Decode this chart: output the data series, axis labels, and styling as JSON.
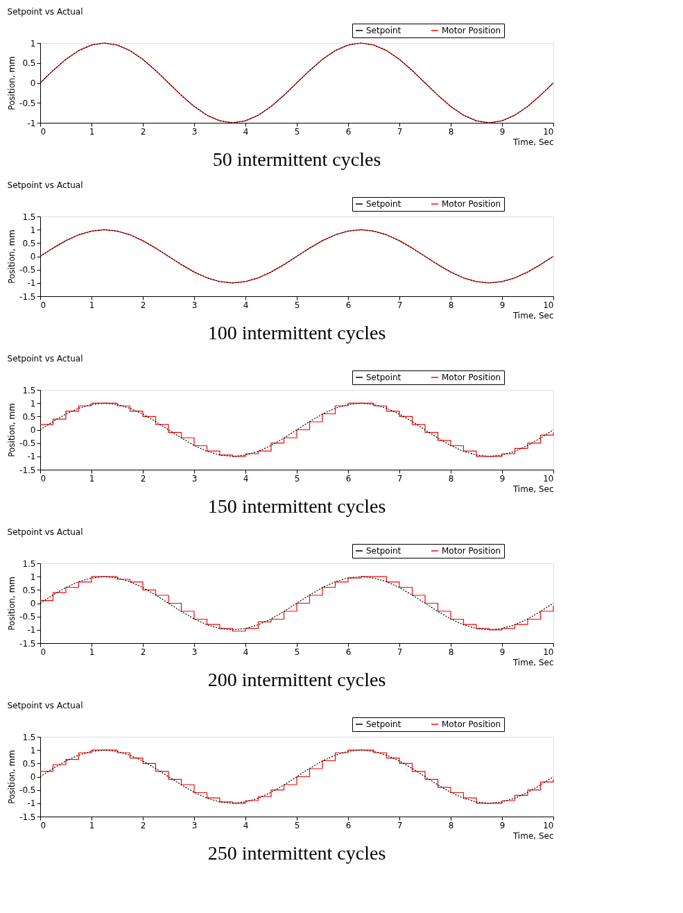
{
  "chart_data": [
    {
      "type": "line",
      "title": "Setpoint vs Actual",
      "xlabel": "Time, Sec",
      "ylabel": "Position, mm",
      "annotations": [
        "50 intermittent cycles"
      ],
      "xlim": [
        0,
        10
      ],
      "xticks": [
        0,
        1,
        2,
        3,
        4,
        5,
        6,
        7,
        8,
        9,
        10
      ],
      "ylim": [
        -1,
        1
      ],
      "yticks": [
        -1,
        -0.5,
        0,
        0.5,
        1
      ],
      "legend": "top right",
      "grid": false,
      "marker": "none",
      "x": [
        0,
        0.25,
        0.5,
        0.75,
        1,
        1.25,
        1.5,
        1.75,
        2,
        2.25,
        2.5,
        2.75,
        3,
        3.25,
        3.5,
        3.75,
        4,
        4.25,
        4.5,
        4.75,
        5,
        5.25,
        5.5,
        5.75,
        6,
        6.25,
        6.5,
        6.75,
        7,
        7.25,
        7.5,
        7.75,
        8,
        8.25,
        8.5,
        8.75,
        9,
        9.25,
        9.5,
        9.75,
        10
      ],
      "series": [
        {
          "name": "Setpoint",
          "color": "#000000",
          "type": "line",
          "line_style": "dotted",
          "values": [
            0,
            0.31,
            0.59,
            0.81,
            0.95,
            1,
            0.95,
            0.81,
            0.59,
            0.31,
            0,
            -0.31,
            -0.59,
            -0.81,
            -0.95,
            -1,
            -0.95,
            -0.81,
            -0.59,
            -0.31,
            0,
            0.31,
            0.59,
            0.81,
            0.95,
            1,
            0.95,
            0.81,
            0.59,
            0.31,
            0,
            -0.31,
            -0.59,
            -0.81,
            -0.95,
            -1,
            -0.95,
            -0.81,
            -0.59,
            -0.31,
            0
          ]
        },
        {
          "name": "Motor Position",
          "color": "#ff0000",
          "type": "line",
          "line_style": "solid",
          "values": [
            0,
            0.31,
            0.59,
            0.81,
            0.95,
            1,
            0.95,
            0.81,
            0.59,
            0.31,
            0,
            -0.31,
            -0.59,
            -0.81,
            -0.95,
            -1,
            -0.95,
            -0.81,
            -0.59,
            -0.31,
            0,
            0.31,
            0.59,
            0.81,
            0.95,
            1,
            0.95,
            0.81,
            0.59,
            0.31,
            0,
            -0.31,
            -0.59,
            -0.81,
            -0.95,
            -1,
            -0.95,
            -0.81,
            -0.59,
            -0.31,
            0
          ]
        }
      ]
    },
    {
      "type": "line",
      "title": "Setpoint vs Actual",
      "xlabel": "Time, Sec",
      "ylabel": "Position, mm",
      "annotations": [
        "100 intermittent cycles"
      ],
      "xlim": [
        0,
        10
      ],
      "xticks": [
        0,
        1,
        2,
        3,
        4,
        5,
        6,
        7,
        8,
        9,
        10
      ],
      "ylim": [
        -1.5,
        1.5
      ],
      "yticks": [
        -1.5,
        -1,
        -0.5,
        0,
        0.5,
        1,
        1.5
      ],
      "legend": "top right",
      "grid": false,
      "marker": "none",
      "x": [
        0,
        0.25,
        0.5,
        0.75,
        1,
        1.25,
        1.5,
        1.75,
        2,
        2.25,
        2.5,
        2.75,
        3,
        3.25,
        3.5,
        3.75,
        4,
        4.25,
        4.5,
        4.75,
        5,
        5.25,
        5.5,
        5.75,
        6,
        6.25,
        6.5,
        6.75,
        7,
        7.25,
        7.5,
        7.75,
        8,
        8.25,
        8.5,
        8.75,
        9,
        9.25,
        9.5,
        9.75,
        10
      ],
      "series": [
        {
          "name": "Setpoint",
          "color": "#000000",
          "type": "line",
          "line_style": "dotted",
          "values": [
            0,
            0.31,
            0.59,
            0.81,
            0.95,
            1,
            0.95,
            0.81,
            0.59,
            0.31,
            0,
            -0.31,
            -0.59,
            -0.81,
            -0.95,
            -1,
            -0.95,
            -0.81,
            -0.59,
            -0.31,
            0,
            0.31,
            0.59,
            0.81,
            0.95,
            1,
            0.95,
            0.81,
            0.59,
            0.31,
            0,
            -0.31,
            -0.59,
            -0.81,
            -0.95,
            -1,
            -0.95,
            -0.81,
            -0.59,
            -0.31,
            0
          ]
        },
        {
          "name": "Motor Position",
          "color": "#ff0000",
          "type": "line",
          "line_style": "solid",
          "values": [
            0,
            0.31,
            0.59,
            0.81,
            0.95,
            1,
            0.95,
            0.81,
            0.59,
            0.31,
            0,
            -0.31,
            -0.59,
            -0.81,
            -0.95,
            -1,
            -0.95,
            -0.81,
            -0.59,
            -0.31,
            0,
            0.31,
            0.59,
            0.81,
            0.95,
            1,
            0.95,
            0.81,
            0.59,
            0.31,
            0,
            -0.31,
            -0.59,
            -0.81,
            -0.95,
            -1,
            -0.95,
            -0.81,
            -0.59,
            -0.31,
            0
          ]
        }
      ]
    },
    {
      "type": "line",
      "title": "Setpoint vs Actual",
      "xlabel": "Time, Sec",
      "ylabel": "Position, mm",
      "annotations": [
        "150 intermittent cycles"
      ],
      "xlim": [
        0,
        10
      ],
      "xticks": [
        0,
        1,
        2,
        3,
        4,
        5,
        6,
        7,
        8,
        9,
        10
      ],
      "ylim": [
        -1.5,
        1.5
      ],
      "yticks": [
        -1.5,
        -1,
        -0.5,
        0,
        0.5,
        1,
        1.5
      ],
      "legend": "top right",
      "grid": false,
      "marker": "none",
      "x": [
        0,
        0.25,
        0.5,
        0.75,
        1,
        1.25,
        1.5,
        1.75,
        2,
        2.25,
        2.5,
        2.75,
        3,
        3.25,
        3.5,
        3.75,
        4,
        4.25,
        4.5,
        4.75,
        5,
        5.25,
        5.5,
        5.75,
        6,
        6.25,
        6.5,
        6.75,
        7,
        7.25,
        7.5,
        7.75,
        8,
        8.25,
        8.5,
        8.75,
        9,
        9.25,
        9.5,
        9.75,
        10
      ],
      "series": [
        {
          "name": "Setpoint",
          "color": "#000000",
          "type": "line",
          "line_style": "dotted",
          "values": [
            0,
            0.31,
            0.59,
            0.81,
            0.95,
            1,
            0.95,
            0.81,
            0.59,
            0.31,
            0,
            -0.31,
            -0.59,
            -0.81,
            -0.95,
            -1,
            -0.95,
            -0.81,
            -0.59,
            -0.31,
            0,
            0.31,
            0.59,
            0.81,
            0.95,
            1,
            0.95,
            0.81,
            0.59,
            0.31,
            0,
            -0.31,
            -0.59,
            -0.81,
            -0.95,
            -1,
            -0.95,
            -0.81,
            -0.59,
            -0.31,
            0
          ]
        },
        {
          "name": "Motor Position",
          "color": "#ff0000",
          "type": "step",
          "line_style": "solid",
          "values": [
            0.2,
            0.4,
            0.7,
            0.9,
            1,
            1,
            0.9,
            0.7,
            0.5,
            0.2,
            -0.1,
            -0.3,
            -0.6,
            -0.8,
            -0.95,
            -1,
            -0.9,
            -0.8,
            -0.5,
            -0.3,
            0,
            0.3,
            0.6,
            0.9,
            1,
            1,
            0.9,
            0.7,
            0.5,
            0.2,
            -0.1,
            -0.4,
            -0.6,
            -0.8,
            -1,
            -1,
            -0.9,
            -0.7,
            -0.5,
            -0.2,
            -0.1
          ]
        }
      ]
    },
    {
      "type": "line",
      "title": "Setpoint vs Actual",
      "xlabel": "Time, Sec",
      "ylabel": "Position, mm",
      "annotations": [
        "200 intermittent cycles"
      ],
      "xlim": [
        0,
        10
      ],
      "xticks": [
        0,
        1,
        2,
        3,
        4,
        5,
        6,
        7,
        8,
        9,
        10
      ],
      "ylim": [
        -1.5,
        1.5
      ],
      "yticks": [
        -1.5,
        -1,
        -0.5,
        0,
        0.5,
        1,
        1.5
      ],
      "legend": "top right",
      "grid": false,
      "marker": "none",
      "x": [
        0,
        0.25,
        0.5,
        0.75,
        1,
        1.25,
        1.5,
        1.75,
        2,
        2.25,
        2.5,
        2.75,
        3,
        3.25,
        3.5,
        3.75,
        4,
        4.25,
        4.5,
        4.75,
        5,
        5.25,
        5.5,
        5.75,
        6,
        6.25,
        6.5,
        6.75,
        7,
        7.25,
        7.5,
        7.75,
        8,
        8.25,
        8.5,
        8.75,
        9,
        9.25,
        9.5,
        9.75,
        10
      ],
      "series": [
        {
          "name": "Setpoint",
          "color": "#000000",
          "type": "line",
          "line_style": "dotted",
          "values": [
            0,
            0.31,
            0.59,
            0.81,
            0.95,
            1,
            0.95,
            0.81,
            0.59,
            0.31,
            0,
            -0.31,
            -0.59,
            -0.81,
            -0.95,
            -1,
            -0.95,
            -0.81,
            -0.59,
            -0.31,
            0,
            0.31,
            0.59,
            0.81,
            0.95,
            1,
            0.95,
            0.81,
            0.59,
            0.31,
            0,
            -0.31,
            -0.59,
            -0.81,
            -0.95,
            -1,
            -0.95,
            -0.81,
            -0.59,
            -0.31,
            0
          ]
        },
        {
          "name": "Motor Position",
          "color": "#ff0000",
          "type": "step",
          "line_style": "solid",
          "values": [
            0.1,
            0.4,
            0.6,
            0.8,
            1,
            1,
            0.9,
            0.8,
            0.5,
            0.3,
            0,
            -0.3,
            -0.6,
            -0.8,
            -0.95,
            -1.05,
            -0.95,
            -0.7,
            -0.6,
            -0.3,
            0,
            0.3,
            0.6,
            0.8,
            0.95,
            1,
            1,
            0.8,
            0.6,
            0.3,
            0,
            -0.3,
            -0.6,
            -0.8,
            -0.95,
            -1,
            -0.95,
            -0.8,
            -0.6,
            -0.3,
            -0.1
          ]
        }
      ]
    },
    {
      "type": "line",
      "title": "Setpoint vs Actual",
      "xlabel": "Time, Sec",
      "ylabel": "Position, mm",
      "annotations": [
        "250 intermittent cycles"
      ],
      "xlim": [
        0,
        10
      ],
      "xticks": [
        0,
        1,
        2,
        3,
        4,
        5,
        6,
        7,
        8,
        9,
        10
      ],
      "ylim": [
        -1.5,
        1.5
      ],
      "yticks": [
        -1.5,
        -1,
        -0.5,
        0,
        0.5,
        1,
        1.5
      ],
      "legend": "top right",
      "grid": false,
      "marker": "none",
      "x": [
        0,
        0.25,
        0.5,
        0.75,
        1,
        1.25,
        1.5,
        1.75,
        2,
        2.25,
        2.5,
        2.75,
        3,
        3.25,
        3.5,
        3.75,
        4,
        4.25,
        4.5,
        4.75,
        5,
        5.25,
        5.5,
        5.75,
        6,
        6.25,
        6.5,
        6.75,
        7,
        7.25,
        7.5,
        7.75,
        8,
        8.25,
        8.5,
        8.75,
        9,
        9.25,
        9.5,
        9.75,
        10
      ],
      "series": [
        {
          "name": "Setpoint",
          "color": "#000000",
          "type": "line",
          "line_style": "dotted",
          "values": [
            0,
            0.31,
            0.59,
            0.81,
            0.95,
            1,
            0.95,
            0.81,
            0.59,
            0.31,
            0,
            -0.31,
            -0.59,
            -0.81,
            -0.95,
            -1,
            -0.95,
            -0.81,
            -0.59,
            -0.31,
            0,
            0.31,
            0.59,
            0.81,
            0.95,
            1,
            0.95,
            0.81,
            0.59,
            0.31,
            0,
            -0.31,
            -0.59,
            -0.81,
            -0.95,
            -1,
            -0.95,
            -0.81,
            -0.59,
            -0.31,
            0
          ]
        },
        {
          "name": "Motor Position",
          "color": "#ff0000",
          "type": "step",
          "line_style": "solid",
          "values": [
            0.2,
            0.45,
            0.65,
            0.9,
            1,
            1,
            0.9,
            0.7,
            0.5,
            0.2,
            -0.1,
            -0.3,
            -0.6,
            -0.8,
            -0.95,
            -1,
            -0.9,
            -0.75,
            -0.5,
            -0.3,
            0,
            0.3,
            0.6,
            0.9,
            1,
            1,
            0.9,
            0.7,
            0.5,
            0.2,
            -0.1,
            -0.4,
            -0.6,
            -0.8,
            -1,
            -1,
            -0.9,
            -0.7,
            -0.5,
            -0.2,
            -0.1
          ]
        }
      ]
    }
  ]
}
